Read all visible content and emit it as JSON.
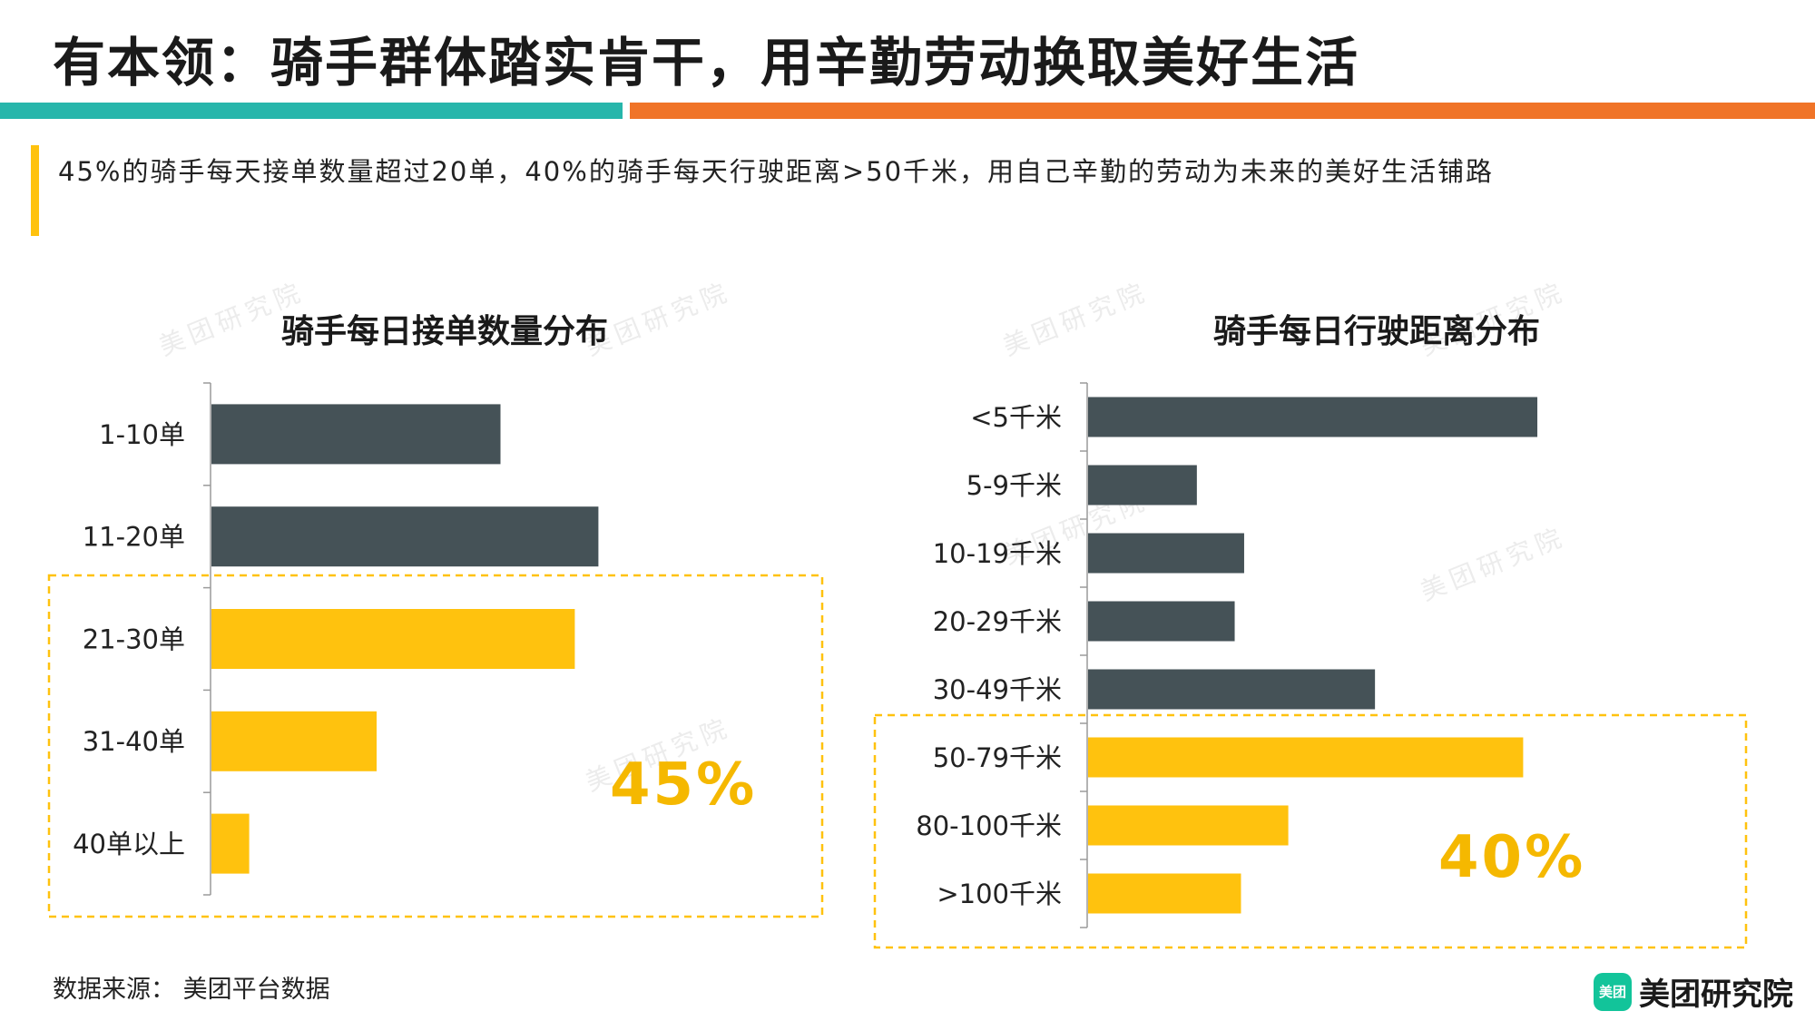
{
  "header": {
    "title": "有本领：骑手群体踏实肯干，用辛勤劳动换取美好生活",
    "subtitle": "45%的骑手每天接单数量超过20单，40%的骑手每天行驶距离>50千米，用自己辛勤的劳动为未来的美好生活铺路"
  },
  "watermark_text": "美团研究院",
  "colors": {
    "dark": "#455257",
    "highlight": "#ffc20e",
    "teal": "#27b6ab",
    "orange": "#f07428",
    "callout": "#f5b800"
  },
  "chart_data": [
    {
      "type": "bar",
      "orientation": "horizontal",
      "title": "骑手每日接单数量分布",
      "categories": [
        "1-10单",
        "11-20单",
        "21-30单",
        "31-40单",
        "40单以上"
      ],
      "values": [
        24.5,
        32.8,
        30.8,
        14.0,
        3.2
      ],
      "highlighted": [
        false,
        false,
        true,
        true,
        true
      ],
      "callout": "45%"
    },
    {
      "type": "bar",
      "orientation": "horizontal",
      "title": "骑手每日行驶距离分布",
      "categories": [
        "<5千米",
        "5-9千米",
        "10-19千米",
        "20-29千米",
        "30-49千米",
        "50-79千米",
        "80-100千米",
        ">100千米"
      ],
      "values": [
        28.5,
        6.9,
        9.9,
        9.3,
        18.2,
        27.6,
        12.7,
        9.7
      ],
      "highlighted": [
        false,
        false,
        false,
        false,
        false,
        true,
        true,
        true
      ],
      "callout": "40%"
    }
  ],
  "footer": {
    "source": "数据来源： 美团平台数据",
    "logo_mark": "美团",
    "logo_text": "美团研究院"
  }
}
